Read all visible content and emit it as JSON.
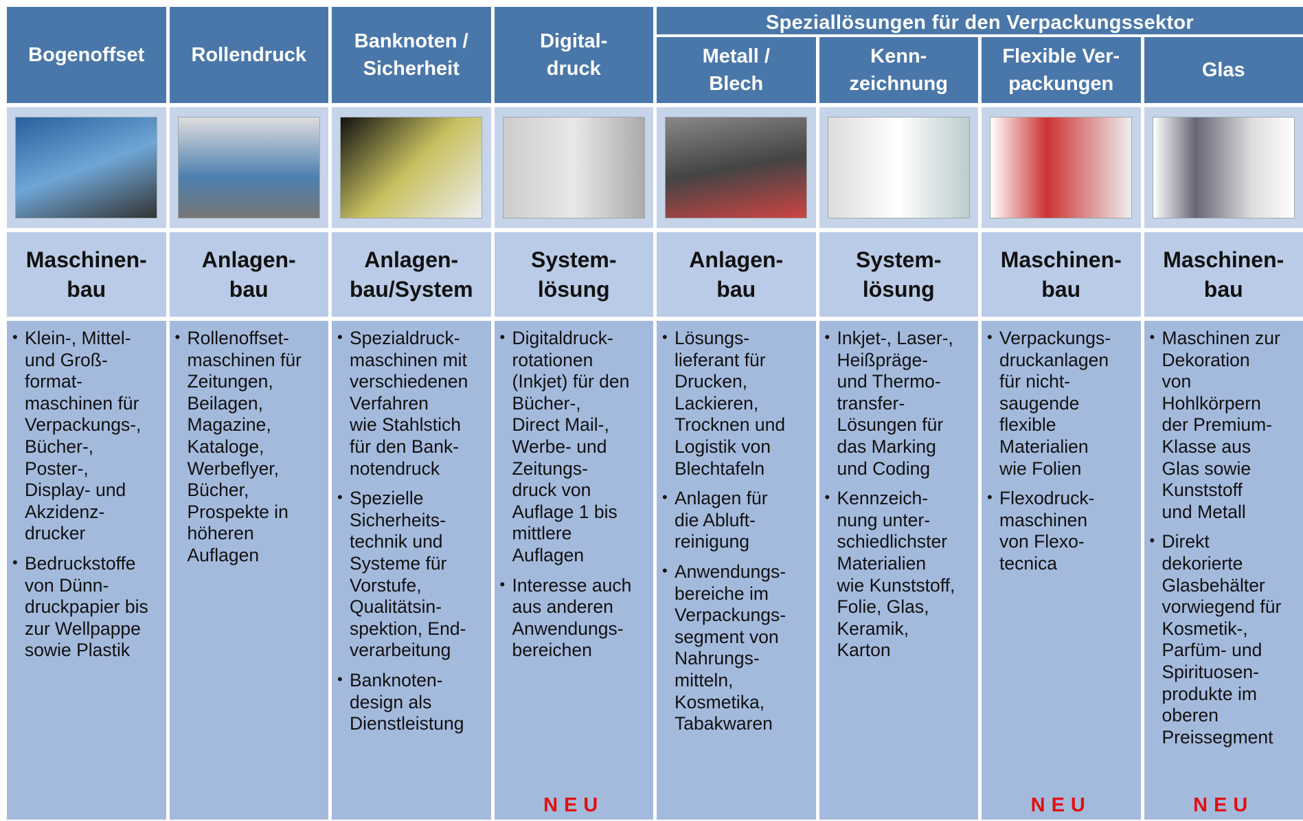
{
  "group": {
    "title": "Speziallösungen für den Verpackungssektor"
  },
  "columns": [
    {
      "title": "Bogenoffset",
      "type": "Maschinen-\nbau",
      "bullets": [
        "Klein-, Mittel-\nund Groß-\nformat-\nmaschinen für\nVerpackungs-,\nBücher-,\nPoster-,\nDisplay-  und\nAkzidenz-\ndrucker",
        "Bedruckstoffe\nvon Dünn-\ndruckpapier bis\nzur Wellpappe\nsowie Plastik"
      ]
    },
    {
      "title": "Rollendruck",
      "type": "Anlagen-\nbau",
      "bullets": [
        "Rollenoffset-\nmaschinen für\nZeitungen,\nBeilagen,\nMagazine,\nKataloge,\nWerbeflyer,\nBücher,\nProspekte in\nhöheren\nAuflagen"
      ]
    },
    {
      "title": "Banknoten /\nSicherheit",
      "type": "Anlagen-\nbau/System",
      "bullets": [
        "Spezialdruck-\nmaschinen mit\nverschiedenen\nVerfahren\nwie Stahlstich\nfür den Bank-\nnotendruck",
        "Spezielle\nSicherheits-\ntechnik und\nSysteme für\nVorstufe,\nQualitätsin-\nspektion, End-\nverarbeitung",
        "Banknoten-\ndesign als\nDienstleistung"
      ]
    },
    {
      "title": "Digital-\ndruck",
      "type": "System-\nlösung",
      "bullets": [
        "Digitaldruck-\nrotationen\n(Inkjet) für den\nBücher-,\nDirect Mail-,\nWerbe- und\nZeitungs-\ndruck von\nAuflage 1 bis\nmittlere\nAuflagen",
        "Interesse auch\naus anderen\nAnwendungs-\nbereichen"
      ],
      "badge": "NEU"
    },
    {
      "title": "Metall /\nBlech",
      "type": "Anlagen-\nbau",
      "bullets": [
        "Lösungs-\nlieferant für\nDrucken,\nLackieren,\nTrocknen und\nLogistik von\nBlechtafeln",
        "Anlagen für\ndie Abluft-\nreinigung",
        "Anwendungs-\nbereiche im\nVerpackungs-\nsegment von\nNahrungs-\nmitteln,\nKosmetika,\nTabakwaren"
      ]
    },
    {
      "title": "Kenn-\nzeichnung",
      "type": "System-\nlösung",
      "bullets": [
        "Inkjet-, Laser-,\nHeißpräge-\nund Thermo-\ntransfer-\nLösungen für\ndas Marking\nund Coding",
        "Kennzeich-\nnung unter-\nschiedlichster\nMaterialien\nwie Kunststoff,\nFolie, Glas,\nKeramik,\nKarton"
      ]
    },
    {
      "title": "Flexible Ver-\npackungen",
      "type": "Maschinen-\nbau",
      "bullets": [
        "Verpackungs-\ndruckanlagen\nfür nicht-\nsaugende\nflexible\nMaterialien\nwie Folien",
        "Flexodruck-\nmaschinen\nvon Flexo-\ntecnica"
      ],
      "badge": "NEU"
    },
    {
      "title": "Glas",
      "type": "Maschinen-\nbau",
      "bullets": [
        "Maschinen zur\nDekoration\nvon\nHohlkörpern\nder Premium-\nKlasse aus\nGlas sowie\nKunststoff\nund Metall",
        "Direkt\ndekorierte\nGlasbehälter\nvorwiegend für\nKosmetik-,\nParfüm- und\nSpirituosen-\nprodukte im\noberen\nPreissegment"
      ],
      "badge": "NEU"
    }
  ]
}
